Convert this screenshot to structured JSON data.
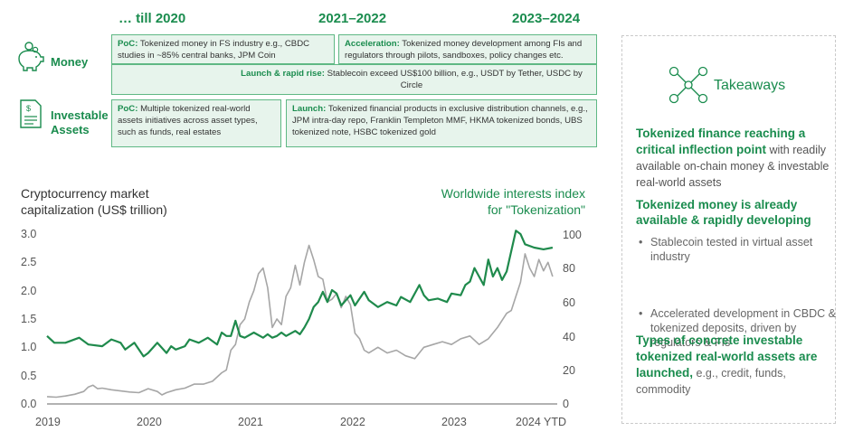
{
  "timeline": {
    "periods": [
      "… till 2020",
      "2021–2022",
      "2023–2024"
    ],
    "rows": {
      "money": "Money",
      "investable_1": "Investable",
      "investable_2": "Assets"
    },
    "boxes": {
      "money_poc": {
        "label": "PoC:",
        "text": "Tokenized money in FS industry e.g., CBDC studies in ~85% central banks, JPM Coin"
      },
      "money_accel": {
        "label": "Acceleration:",
        "text": "Tokenized money development among FIs and regulators through pilots, sandboxes, policy changes etc."
      },
      "money_launch": {
        "label": "Launch & rapid rise:",
        "text": "Stablecoin exceed US$100 billion, e.g., USDT by Tether, USDC by Circle"
      },
      "assets_poc": {
        "label": "PoC:",
        "text": "Multiple tokenized real-world assets initiatives across asset types, such as funds, real estates"
      },
      "assets_launch": {
        "label": "Launch:",
        "text": "Tokenized financial products in exclusive distribution channels, e.g., JPM intra-day repo, Franklin Templeton MMF, HKMA tokenized bonds, UBS tokenized note, HSBC tokenized gold"
      }
    }
  },
  "chart_data": {
    "type": "line",
    "left_axis_title_1": "Cryptocurrency market",
    "left_axis_title_2": "capitalization (US$ trillion)",
    "right_axis_title_1": "Worldwide interests index",
    "right_axis_title_2": "for \"Tokenization\"",
    "x_ticks": [
      "2019",
      "2020",
      "2021",
      "2022",
      "2023",
      "2024 YTD"
    ],
    "x_range": [
      2019,
      2024.55
    ],
    "left_ylim": [
      0,
      3.0
    ],
    "left_ticks": [
      "0.0",
      "0.5",
      "1.0",
      "1.5",
      "2.0",
      "2.5",
      "3.0"
    ],
    "right_ylim": [
      0,
      100
    ],
    "right_ticks": [
      "0",
      "20",
      "40",
      "60",
      "80",
      "100"
    ],
    "series": [
      {
        "name": "Cryptocurrency market capitalization",
        "axis": "left",
        "color": "#a6a6a6",
        "x": [
          2019.0,
          2019.1,
          2019.2,
          2019.3,
          2019.4,
          2019.45,
          2019.5,
          2019.55,
          2019.6,
          2019.7,
          2019.8,
          2019.9,
          2020.0,
          2020.1,
          2020.2,
          2020.25,
          2020.3,
          2020.4,
          2020.5,
          2020.6,
          2020.7,
          2020.8,
          2020.9,
          2020.95,
          2021.0,
          2021.05,
          2021.1,
          2021.15,
          2021.2,
          2021.25,
          2021.3,
          2021.35,
          2021.4,
          2021.45,
          2021.5,
          2021.55,
          2021.6,
          2021.65,
          2021.7,
          2021.75,
          2021.8,
          2021.85,
          2021.9,
          2021.95,
          2022.0,
          2022.05,
          2022.1,
          2022.15,
          2022.2,
          2022.25,
          2022.3,
          2022.35,
          2022.4,
          2022.45,
          2022.5,
          2022.6,
          2022.7,
          2022.8,
          2022.9,
          2023.0,
          2023.1,
          2023.2,
          2023.3,
          2023.4,
          2023.5,
          2023.6,
          2023.7,
          2023.8,
          2023.9,
          2024.0,
          2024.05,
          2024.1,
          2024.15,
          2024.2,
          2024.25,
          2024.3,
          2024.35,
          2024.4,
          2024.45,
          2024.5
        ],
        "values": [
          0.13,
          0.12,
          0.14,
          0.17,
          0.22,
          0.3,
          0.33,
          0.27,
          0.28,
          0.25,
          0.23,
          0.21,
          0.2,
          0.27,
          0.22,
          0.16,
          0.2,
          0.25,
          0.28,
          0.35,
          0.35,
          0.4,
          0.55,
          0.6,
          0.95,
          1.05,
          1.4,
          1.5,
          1.8,
          2.0,
          2.3,
          2.4,
          2.05,
          1.35,
          1.5,
          1.4,
          1.9,
          2.05,
          2.45,
          2.1,
          2.5,
          2.8,
          2.55,
          2.25,
          2.2,
          1.8,
          1.85,
          1.95,
          1.7,
          1.9,
          1.75,
          1.25,
          1.15,
          0.95,
          0.9,
          1.0,
          0.9,
          0.95,
          0.85,
          0.8,
          1.0,
          1.05,
          1.1,
          1.05,
          1.15,
          1.2,
          1.05,
          1.15,
          1.35,
          1.6,
          1.65,
          1.9,
          2.15,
          2.65,
          2.4,
          2.25,
          2.55,
          2.35,
          2.5,
          2.25
        ]
      },
      {
        "name": "Worldwide interests index for Tokenization",
        "axis": "right",
        "color": "#1f8a4c",
        "x": [
          2019.0,
          2019.08,
          2019.2,
          2019.35,
          2019.45,
          2019.6,
          2019.7,
          2019.8,
          2019.85,
          2019.95,
          2020.05,
          2020.1,
          2020.2,
          2020.3,
          2020.35,
          2020.4,
          2020.5,
          2020.55,
          2020.65,
          2020.75,
          2020.85,
          2020.9,
          2020.95,
          2021.0,
          2021.05,
          2021.1,
          2021.15,
          2021.25,
          2021.35,
          2021.4,
          2021.45,
          2021.5,
          2021.55,
          2021.6,
          2021.7,
          2021.75,
          2021.8,
          2021.85,
          2021.9,
          2021.95,
          2022.0,
          2022.05,
          2022.1,
          2022.15,
          2022.2,
          2022.3,
          2022.35,
          2022.45,
          2022.5,
          2022.6,
          2022.7,
          2022.8,
          2022.85,
          2022.95,
          2023.05,
          2023.1,
          2023.15,
          2023.25,
          2023.35,
          2023.4,
          2023.5,
          2023.55,
          2023.6,
          2023.65,
          2023.7,
          2023.75,
          2023.8,
          2023.85,
          2023.9,
          2023.95,
          2024.0,
          2024.05,
          2024.1,
          2024.15,
          2024.2,
          2024.3,
          2024.4,
          2024.5
        ],
        "values": [
          40,
          36,
          36,
          39,
          35,
          34,
          38,
          36,
          32,
          36,
          28,
          30,
          36,
          30,
          34,
          32,
          34,
          38,
          36,
          39,
          35,
          42,
          40,
          40,
          49,
          40,
          39,
          42,
          39,
          41,
          39,
          40,
          42,
          40,
          43,
          41,
          45,
          50,
          57,
          60,
          66,
          60,
          67,
          65,
          58,
          64,
          58,
          66,
          61,
          57,
          60,
          58,
          63,
          60,
          70,
          64,
          61,
          62,
          60,
          65,
          64,
          70,
          72,
          80,
          75,
          70,
          85,
          75,
          80,
          73,
          78,
          90,
          102,
          100,
          94,
          92,
          91,
          92
        ]
      }
    ]
  },
  "takeaways": {
    "title": "Takeaways",
    "items": [
      {
        "head": "Tokenized finance reaching a critical inflection point",
        "rest": " with readily available on-chain money & investable real-world assets"
      },
      {
        "head": "Tokenized money is already available & rapidly developing",
        "rest": ""
      },
      {
        "head": "Types of concrete investable tokenized real-world assets are launched,",
        "rest": " e.g., credit, funds, commodity"
      }
    ],
    "bullets": [
      "Stablecoin tested in virtual asset industry",
      "Accelerated development in CBDC & tokenized deposits, driven by regulators & FIs"
    ]
  }
}
